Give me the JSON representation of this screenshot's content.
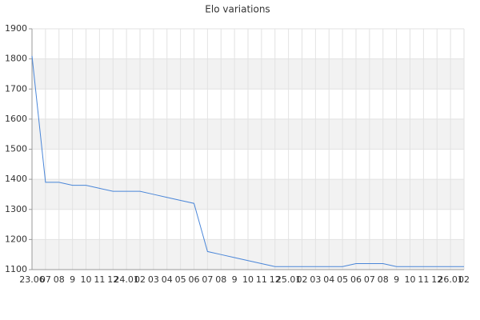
{
  "chart_data": {
    "type": "line",
    "title": "Elo variations",
    "categories": [
      "23.06",
      "07",
      "08",
      "9",
      "10",
      "11",
      "12",
      "24.01",
      "02",
      "03",
      "04",
      "05",
      "06",
      "07",
      "08",
      "9",
      "10",
      "11",
      "12",
      "25.01",
      "02",
      "03",
      "04",
      "05",
      "06",
      "07",
      "08",
      "9",
      "10",
      "11",
      "12",
      "26.01",
      "02"
    ],
    "series": [
      {
        "name": "Elo",
        "color": "#4a86d8",
        "values": [
          1810,
          1390,
          1390,
          1380,
          1380,
          1370,
          1360,
          1360,
          1360,
          1350,
          1340,
          1330,
          1320,
          1160,
          1150,
          1140,
          1130,
          1120,
          1110,
          1110,
          1110,
          1110,
          1110,
          1110,
          1120,
          1120,
          1120,
          1110,
          1110,
          1110,
          1110,
          1110,
          1110
        ]
      }
    ],
    "ylim": [
      1100,
      1900
    ],
    "yticks": [
      1100,
      1200,
      1300,
      1400,
      1500,
      1600,
      1700,
      1800,
      1900
    ],
    "grid": true
  }
}
